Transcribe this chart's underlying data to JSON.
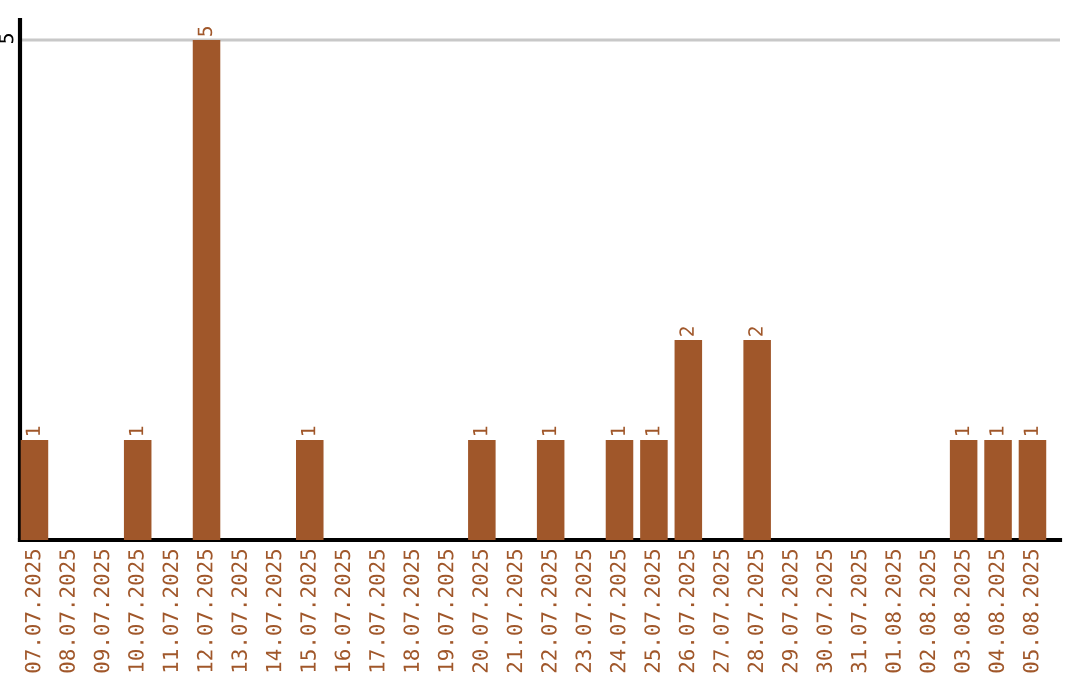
{
  "chart_data": {
    "type": "bar",
    "categories": [
      "07.07.2025",
      "08.07.2025",
      "09.07.2025",
      "10.07.2025",
      "11.07.2025",
      "12.07.2025",
      "13.07.2025",
      "14.07.2025",
      "15.07.2025",
      "16.07.2025",
      "17.07.2025",
      "18.07.2025",
      "19.07.2025",
      "20.07.2025",
      "21.07.2025",
      "22.07.2025",
      "23.07.2025",
      "24.07.2025",
      "25.07.2025",
      "26.07.2025",
      "27.07.2025",
      "28.07.2025",
      "29.07.2025",
      "30.07.2025",
      "31.07.2025",
      "01.08.2025",
      "02.08.2025",
      "03.08.2025",
      "04.08.2025",
      "05.08.2025"
    ],
    "values": [
      1,
      0,
      0,
      1,
      0,
      5,
      0,
      0,
      1,
      0,
      0,
      0,
      0,
      1,
      0,
      1,
      0,
      1,
      1,
      2,
      0,
      2,
      0,
      0,
      0,
      0,
      0,
      1,
      1,
      1
    ],
    "value_labels": [
      "1",
      null,
      null,
      "1",
      null,
      "5",
      null,
      null,
      "1",
      null,
      null,
      null,
      null,
      "1",
      null,
      "1",
      null,
      "1",
      "1",
      "2",
      null,
      "2",
      null,
      null,
      null,
      null,
      null,
      "1",
      "1",
      "1"
    ],
    "color": "#a0572a",
    "ylim": [
      0,
      5.2
    ],
    "yticks": [
      5
    ],
    "grid": "y"
  }
}
